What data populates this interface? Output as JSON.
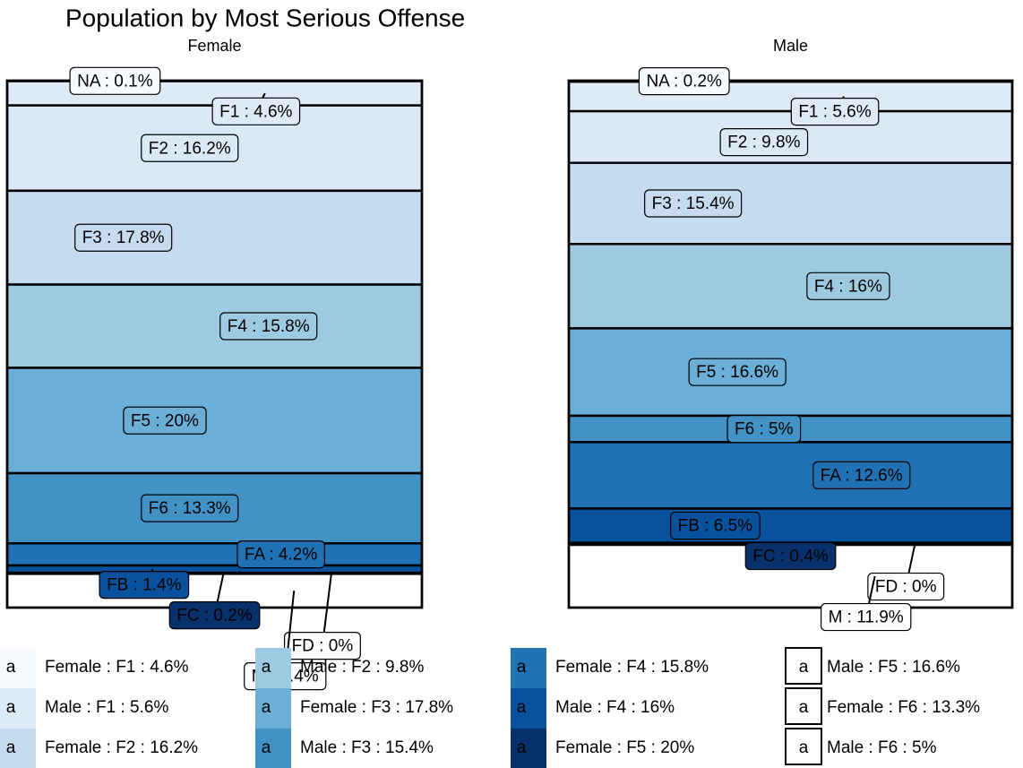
{
  "chart_data": {
    "type": "stacked_bar",
    "title": "Population by Most Serious Offense",
    "categories": [
      "NA",
      "F1",
      "F2",
      "F3",
      "F4",
      "F5",
      "F6",
      "FA",
      "FB",
      "FC",
      "FD",
      "M"
    ],
    "series": [
      {
        "name": "Female",
        "values": [
          0.1,
          4.6,
          16.2,
          17.8,
          15.8,
          20,
          13.3,
          4.2,
          1.4,
          0.2,
          0,
          6.4
        ],
        "value_labels": [
          "NA : 0.1%",
          "F1 : 4.6%",
          "F2 : 16.2%",
          "F3 : 17.8%",
          "F4 : 15.8%",
          "F5 : 20%",
          "F6 : 13.3%",
          "FA : 4.2%",
          "FB : 1.4%",
          "FC : 0.2%",
          "FD : 0%",
          "M : 6.4%"
        ],
        "colors": [
          "#f7fbff",
          "#deebf7",
          "#dbe9f6",
          "#c6dbef",
          "#9ecae1",
          "#6baed6",
          "#4292c6",
          "#2171b5",
          "#08519c",
          "#08306b",
          "#ffffff",
          "#ffffff"
        ]
      },
      {
        "name": "Male",
        "values": [
          0.2,
          5.6,
          9.8,
          15.4,
          16,
          16.6,
          5,
          12.6,
          6.5,
          0.4,
          0,
          11.9
        ],
        "value_labels": [
          "NA : 0.2%",
          "F1 : 5.6%",
          "F2 : 9.8%",
          "F3 : 15.4%",
          "F4 : 16%",
          "F5 : 16.6%",
          "F6 : 5%",
          "FA : 12.6%",
          "FB : 6.5%",
          "FC : 0.4%",
          "FD : 0%",
          "M : 11.9%"
        ],
        "colors": [
          "#f7fbff",
          "#deebf7",
          "#dbe9f6",
          "#c6dbef",
          "#9ecae1",
          "#6baed6",
          "#4292c6",
          "#2171b5",
          "#08519c",
          "#08306b",
          "#ffffff",
          "#ffffff"
        ]
      }
    ],
    "legend_key": "a",
    "legend": [
      {
        "label": "Female : F1 : 4.6%",
        "color": "#f7fbff"
      },
      {
        "label": "Male : F1 : 5.6%",
        "color": "#deebf7"
      },
      {
        "label": "Female : F2 : 16.2%",
        "color": "#c6dbef"
      },
      {
        "label": "Male : F2 : 9.8%",
        "color": "#9ecae1"
      },
      {
        "label": "Female : F3 : 17.8%",
        "color": "#6baed6"
      },
      {
        "label": "Male : F3 : 15.4%",
        "color": "#4292c6"
      },
      {
        "label": "Female : F4 : 15.8%",
        "color": "#2171b5"
      },
      {
        "label": "Male : F4 : 16%",
        "color": "#08519c"
      },
      {
        "label": "Female : F5 : 20%",
        "color": "#08306b"
      },
      {
        "label": "Male : F5 : 16.6%",
        "color": "#ffffff"
      },
      {
        "label": "Female : F6 : 13.3%",
        "color": "#ffffff"
      },
      {
        "label": "Male : F6 : 5%",
        "color": "#ffffff"
      }
    ]
  }
}
